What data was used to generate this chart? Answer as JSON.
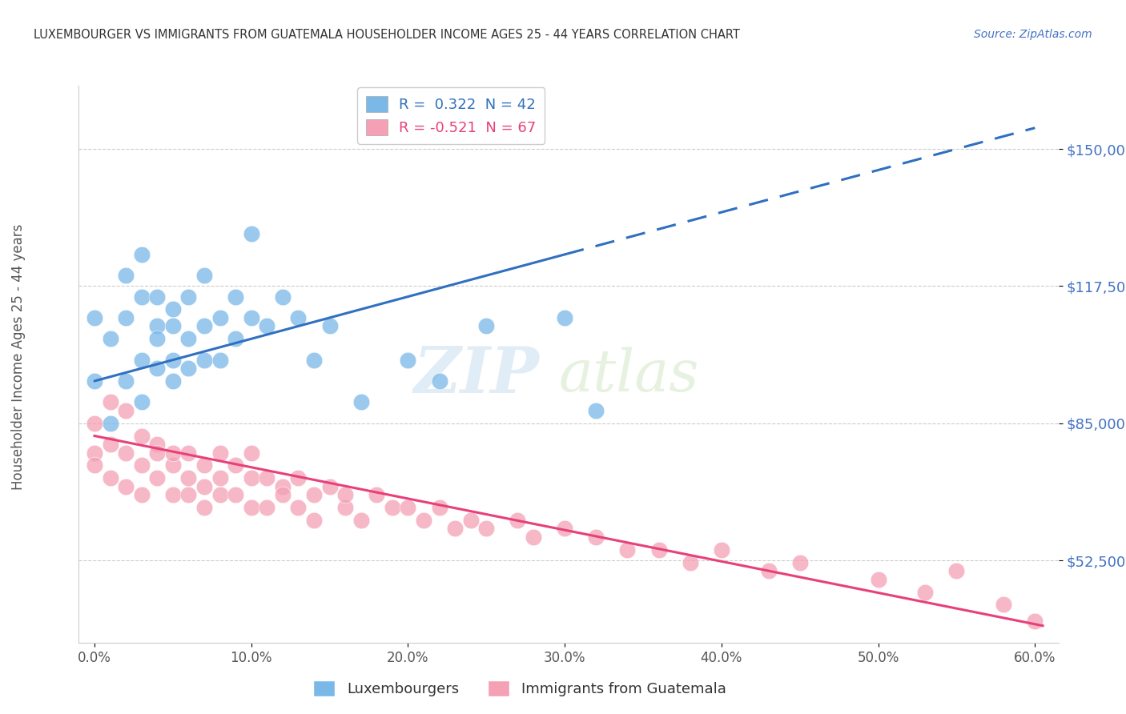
{
  "title": "LUXEMBOURGER VS IMMIGRANTS FROM GUATEMALA HOUSEHOLDER INCOME AGES 25 - 44 YEARS CORRELATION CHART",
  "source": "Source: ZipAtlas.com",
  "ylabel": "Householder Income Ages 25 - 44 years",
  "xlabel_ticks": [
    "0.0%",
    "10.0%",
    "20.0%",
    "30.0%",
    "40.0%",
    "50.0%",
    "60.0%"
  ],
  "xlabel_vals": [
    0.0,
    0.1,
    0.2,
    0.3,
    0.4,
    0.5,
    0.6
  ],
  "ytick_labels": [
    "$52,500",
    "$85,000",
    "$117,500",
    "$150,000"
  ],
  "ytick_vals": [
    52500,
    85000,
    117500,
    150000
  ],
  "xlim": [
    -0.01,
    0.615
  ],
  "ylim": [
    33000,
    165000
  ],
  "blue_color": "#7ab8e8",
  "pink_color": "#f4a0b5",
  "blue_line_color": "#3070c0",
  "pink_line_color": "#e8407a",
  "watermark_zip": "ZIP",
  "watermark_atlas": "atlas",
  "legend_blue_label": "R =  0.322  N = 42",
  "legend_pink_label": "R = -0.521  N = 67",
  "legend_title_blue": "Luxembourgers",
  "legend_title_pink": "Immigrants from Guatemala",
  "blue_scatter_x": [
    0.0,
    0.0,
    0.01,
    0.01,
    0.02,
    0.02,
    0.02,
    0.03,
    0.03,
    0.03,
    0.03,
    0.04,
    0.04,
    0.04,
    0.04,
    0.05,
    0.05,
    0.05,
    0.05,
    0.06,
    0.06,
    0.06,
    0.07,
    0.07,
    0.07,
    0.08,
    0.08,
    0.09,
    0.09,
    0.1,
    0.1,
    0.11,
    0.12,
    0.13,
    0.14,
    0.15,
    0.17,
    0.2,
    0.22,
    0.25,
    0.3,
    0.32
  ],
  "blue_scatter_y": [
    95000,
    110000,
    85000,
    105000,
    110000,
    95000,
    120000,
    100000,
    115000,
    90000,
    125000,
    108000,
    98000,
    115000,
    105000,
    112000,
    100000,
    95000,
    108000,
    115000,
    105000,
    98000,
    108000,
    120000,
    100000,
    110000,
    100000,
    105000,
    115000,
    130000,
    110000,
    108000,
    115000,
    110000,
    100000,
    108000,
    90000,
    100000,
    95000,
    108000,
    110000,
    88000
  ],
  "pink_scatter_x": [
    0.0,
    0.0,
    0.0,
    0.01,
    0.01,
    0.01,
    0.02,
    0.02,
    0.02,
    0.03,
    0.03,
    0.03,
    0.04,
    0.04,
    0.04,
    0.05,
    0.05,
    0.05,
    0.06,
    0.06,
    0.06,
    0.07,
    0.07,
    0.07,
    0.08,
    0.08,
    0.08,
    0.09,
    0.09,
    0.1,
    0.1,
    0.1,
    0.11,
    0.11,
    0.12,
    0.12,
    0.13,
    0.13,
    0.14,
    0.14,
    0.15,
    0.16,
    0.16,
    0.17,
    0.18,
    0.19,
    0.2,
    0.21,
    0.22,
    0.23,
    0.24,
    0.25,
    0.27,
    0.28,
    0.3,
    0.32,
    0.34,
    0.36,
    0.38,
    0.4,
    0.43,
    0.45,
    0.5,
    0.53,
    0.55,
    0.58,
    0.6
  ],
  "pink_scatter_y": [
    85000,
    78000,
    75000,
    90000,
    80000,
    72000,
    78000,
    88000,
    70000,
    82000,
    75000,
    68000,
    80000,
    72000,
    78000,
    75000,
    68000,
    78000,
    72000,
    78000,
    68000,
    75000,
    70000,
    65000,
    78000,
    68000,
    72000,
    68000,
    75000,
    72000,
    65000,
    78000,
    72000,
    65000,
    70000,
    68000,
    72000,
    65000,
    68000,
    62000,
    70000,
    65000,
    68000,
    62000,
    68000,
    65000,
    65000,
    62000,
    65000,
    60000,
    62000,
    60000,
    62000,
    58000,
    60000,
    58000,
    55000,
    55000,
    52000,
    55000,
    50000,
    52000,
    48000,
    45000,
    50000,
    42000,
    38000
  ]
}
